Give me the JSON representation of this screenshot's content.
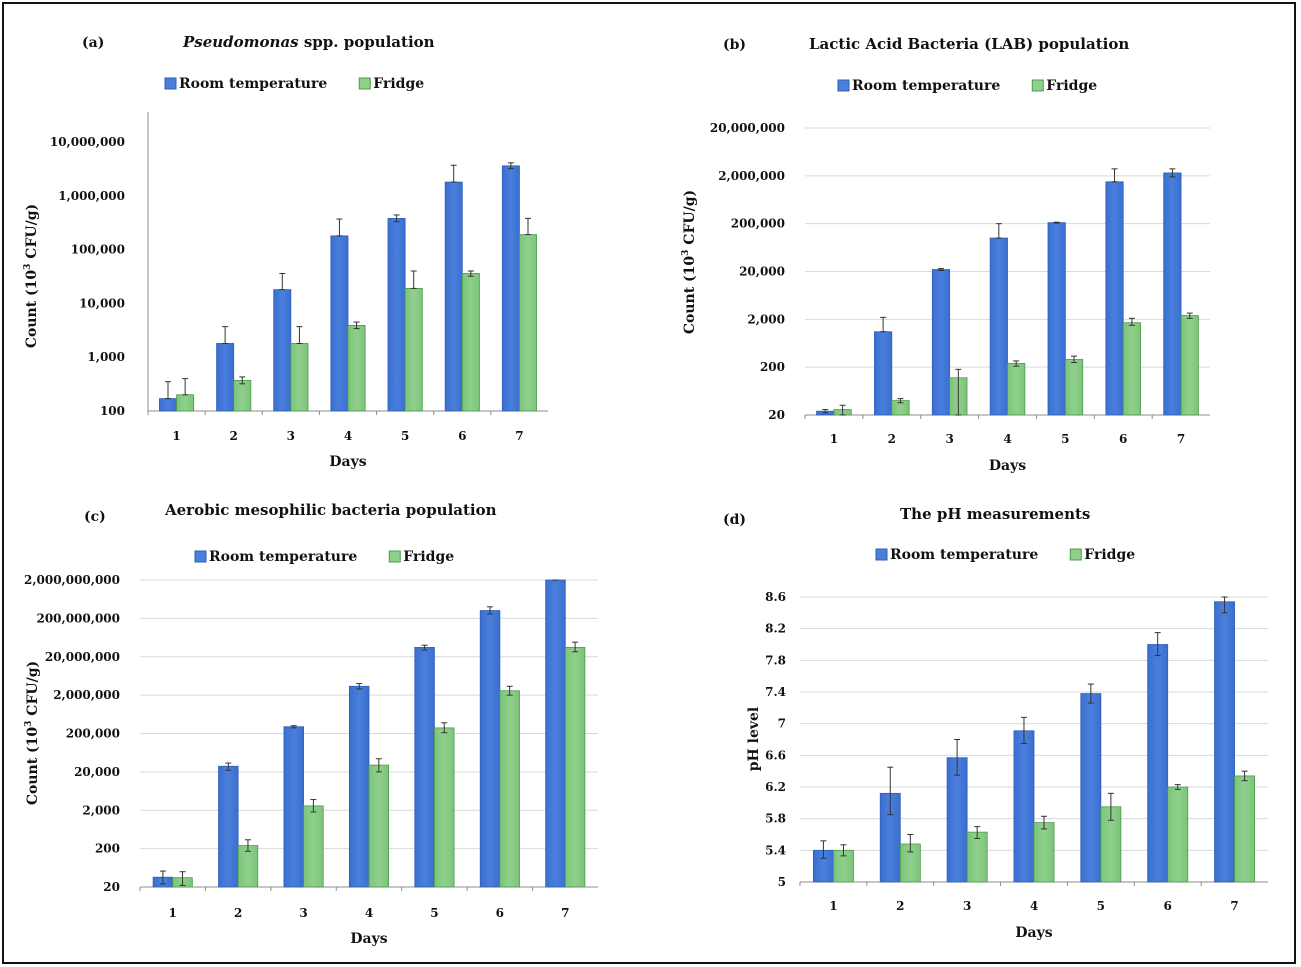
{
  "colors": {
    "room": "#4a7fdc",
    "room_edge": "#2f5fb8",
    "fridge": "#8fd08c",
    "fridge_edge": "#4f9a4c",
    "grid": "#d9d9d9",
    "axis": "#8c8c8c",
    "errorbar": "#333333"
  },
  "chart_data": [
    {
      "panel": "(a)",
      "title_italic": "Pseudomonas",
      "title_rest": " spp. population",
      "type": "bar",
      "scale": "log",
      "xlabel": "Days",
      "ylabel_prefix": "Count (10",
      "ylabel_sup": "3",
      "ylabel_suffix": " CFU/g)",
      "ylim": [
        100,
        10000000
      ],
      "yticks": [
        100,
        1000,
        10000,
        100000,
        1000000,
        10000000
      ],
      "ytick_labels": [
        "100",
        "1,000",
        "10,000",
        "100,000",
        "1,000,000",
        "10,000,000"
      ],
      "grid": false,
      "legend": "top",
      "categories": [
        "1",
        "2",
        "3",
        "4",
        "5",
        "6",
        "7"
      ],
      "series": [
        {
          "name": "Room temperature",
          "values": [
            170,
            1800,
            18000,
            180000,
            380000,
            1800000,
            3600000
          ],
          "err_high": [
            350,
            3700,
            36000,
            370000,
            440000,
            3700000,
            4100000
          ],
          "err_low": [
            170,
            1800,
            18000,
            180000,
            330000,
            1800000,
            3200000
          ]
        },
        {
          "name": "Fridge",
          "values": [
            200,
            370,
            1800,
            3900,
            19000,
            36000,
            190000
          ],
          "err_high": [
            400,
            430,
            3700,
            4500,
            40000,
            40000,
            380000
          ],
          "err_low": [
            200,
            320,
            1800,
            3400,
            19000,
            32000,
            190000
          ]
        }
      ]
    },
    {
      "panel": "(b)",
      "title": "Lactic Acid Bacteria (LAB) population",
      "type": "bar",
      "scale": "log",
      "xlabel": "Days",
      "ylabel_prefix": "Count (10",
      "ylabel_sup": "3",
      "ylabel_suffix": " CFU/g)",
      "ylim": [
        20,
        20000000
      ],
      "yticks": [
        20,
        200,
        2000,
        20000,
        200000,
        2000000,
        20000000
      ],
      "ytick_labels": [
        "20",
        "200",
        "2,000",
        "20,000",
        "200,000",
        "2,000,000",
        "20,000,000"
      ],
      "grid": true,
      "legend": "top",
      "categories": [
        "1",
        "2",
        "3",
        "4",
        "5",
        "6",
        "7"
      ],
      "series": [
        {
          "name": "Room temperature",
          "values": [
            24,
            1100,
            22000,
            100000,
            210000,
            1500000,
            2300000
          ],
          "err_high": [
            26,
            2200,
            23000,
            200000,
            215000,
            2800000,
            2800000
          ],
          "err_low": [
            22,
            1100,
            21000,
            100000,
            205000,
            1500000,
            1900000
          ]
        },
        {
          "name": "Fridge",
          "values": [
            26,
            40,
            120,
            240,
            290,
            1700,
            2400
          ],
          "err_high": [
            32,
            44,
            180,
            270,
            340,
            2100,
            2700
          ],
          "err_low": [
            20,
            36,
            20,
            210,
            250,
            1500,
            2100
          ]
        }
      ]
    },
    {
      "panel": "(c)",
      "title": "Aerobic mesophilic bacteria population",
      "type": "bar",
      "scale": "log",
      "xlabel": "Days",
      "ylabel_prefix": "Count (10",
      "ylabel_sup": "3",
      "ylabel_suffix": " CFU/g)",
      "ylim": [
        20,
        2000000000
      ],
      "yticks": [
        20,
        200,
        2000,
        20000,
        200000,
        2000000,
        20000000,
        200000000,
        2000000000
      ],
      "ytick_labels": [
        "20",
        "200",
        "2,000",
        "20,000",
        "200,000",
        "2,000,000",
        "20,000,000",
        "200,000,000",
        "2,000,000,000"
      ],
      "grid": true,
      "legend": "top",
      "categories": [
        "1",
        "2",
        "3",
        "4",
        "5",
        "6",
        "7"
      ],
      "series": [
        {
          "name": "Room temperature",
          "values": [
            36,
            28000,
            300000,
            3400000,
            35000000,
            320000000,
            2000000000
          ],
          "err_high": [
            52,
            34000,
            320000,
            4000000,
            40000000,
            400000000,
            2000000000
          ],
          "err_low": [
            24,
            22000,
            280000,
            2900000,
            30000000,
            260000000,
            2000000000
          ]
        },
        {
          "name": "Fridge",
          "values": [
            35,
            240,
            2600,
            30000,
            280000,
            2600000,
            35000000
          ],
          "err_high": [
            50,
            340,
            3800,
            44000,
            380000,
            3400000,
            48000000
          ],
          "err_low": [
            22,
            170,
            1800,
            20000,
            210000,
            2000000,
            27000000
          ]
        }
      ]
    },
    {
      "panel": "(d)",
      "title": "The pH measurements",
      "type": "bar",
      "scale": "linear",
      "xlabel": "Days",
      "ylabel": "pH level",
      "ylim": [
        5,
        8.6
      ],
      "yticks": [
        5,
        5.4,
        5.8,
        6.2,
        6.6,
        7,
        7.4,
        7.8,
        8.2,
        8.6
      ],
      "ytick_labels": [
        "5",
        "5.4",
        "5.8",
        "6.2",
        "6.6",
        "7",
        "7.4",
        "7.8",
        "8.2",
        "8.6"
      ],
      "grid": true,
      "legend": "top",
      "categories": [
        "1",
        "2",
        "3",
        "4",
        "5",
        "6",
        "7"
      ],
      "series": [
        {
          "name": "Room temperature",
          "values": [
            5.4,
            6.12,
            6.57,
            6.91,
            7.38,
            8.0,
            8.54
          ],
          "err_high": [
            5.52,
            6.45,
            6.8,
            7.08,
            7.5,
            8.15,
            8.68
          ],
          "err_low": [
            5.3,
            5.85,
            6.35,
            6.75,
            7.26,
            7.86,
            8.4
          ]
        },
        {
          "name": "Fridge",
          "values": [
            5.4,
            5.48,
            5.63,
            5.75,
            5.95,
            6.2,
            6.34
          ],
          "err_high": [
            5.47,
            5.6,
            5.7,
            5.83,
            6.12,
            6.23,
            6.4
          ],
          "err_low": [
            5.33,
            5.38,
            5.55,
            5.67,
            5.78,
            6.17,
            6.28
          ]
        }
      ]
    }
  ]
}
